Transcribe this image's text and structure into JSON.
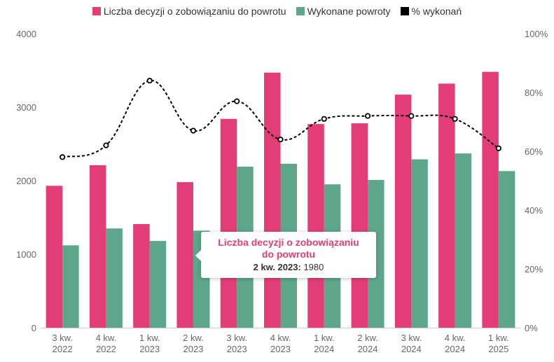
{
  "chart_data": {
    "type": "bar",
    "categories": [
      [
        "3 kw.",
        "2022"
      ],
      [
        "4 kw.",
        "2022"
      ],
      [
        "1 kw.",
        "2023"
      ],
      [
        "2 kw.",
        "2023"
      ],
      [
        "3 kw.",
        "2023"
      ],
      [
        "4 kw.",
        "2023"
      ],
      [
        "1 kw.",
        "2024"
      ],
      [
        "2 kw.",
        "2024"
      ],
      [
        "3 kw.",
        "2024"
      ],
      [
        "4 kw.",
        "2024"
      ],
      [
        "1 kw.",
        "2025"
      ]
    ],
    "series": [
      {
        "name": "Liczba decyzji o zobowiązaniu do powrotu",
        "type": "bar",
        "axis": "left",
        "color": "#e33d77",
        "values": [
          1930,
          2210,
          1410,
          1980,
          2840,
          3470,
          2770,
          2780,
          3170,
          3320,
          3480
        ]
      },
      {
        "name": "Wykonane powroty",
        "type": "bar",
        "axis": "left",
        "color": "#5da68b",
        "values": [
          1120,
          1350,
          1180,
          1320,
          2190,
          2230,
          1950,
          2010,
          2290,
          2370,
          2130
        ]
      },
      {
        "name": "% wykonań",
        "type": "line",
        "axis": "right",
        "color": "#000000",
        "dashed": true,
        "values": [
          58,
          62,
          84,
          67,
          77,
          64,
          71,
          72,
          72,
          71,
          61
        ]
      }
    ],
    "y_left": {
      "min": 0,
      "max": 4000,
      "ticks": [
        0,
        1000,
        2000,
        3000,
        4000
      ]
    },
    "y_right": {
      "min": 0,
      "max": 100,
      "ticks": [
        "0%",
        "20%",
        "40%",
        "60%",
        "80%",
        "100%"
      ]
    },
    "legend_position": "top-center",
    "grid": false
  },
  "tooltip": {
    "series": "Liczba decyzji o zobowiązaniu do powrotu",
    "category": "2 kw. 2023:",
    "value": "1980"
  }
}
